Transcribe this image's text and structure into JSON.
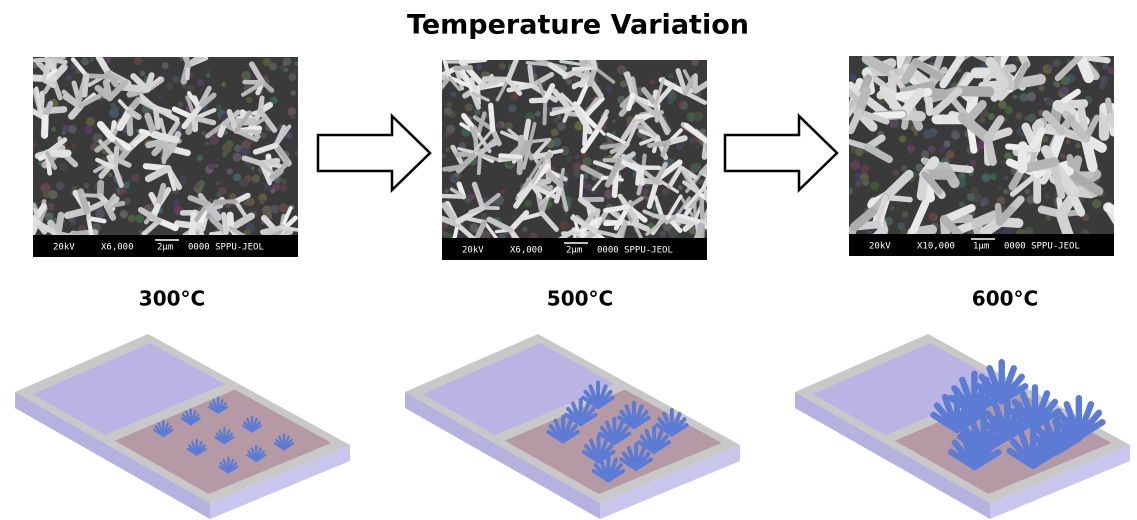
{
  "title": "Temperature Variation",
  "panels": [
    {
      "temperature": "300°C",
      "sem_bar": {
        "voltage": "20kV",
        "magnification": "X6,000",
        "scale": "2μm",
        "id": "0000 SPPU-JEOL"
      }
    },
    {
      "temperature": "500°C",
      "sem_bar": {
        "voltage": "20kV",
        "magnification": "X6,000",
        "scale": "2μm",
        "id": "0000 SPPU-JEOL"
      }
    },
    {
      "temperature": "600°C",
      "sem_bar": {
        "voltage": "20kV",
        "magnification": "X10,000",
        "scale": "1μm",
        "id": "0000 SPPU-JEOL"
      }
    }
  ]
}
